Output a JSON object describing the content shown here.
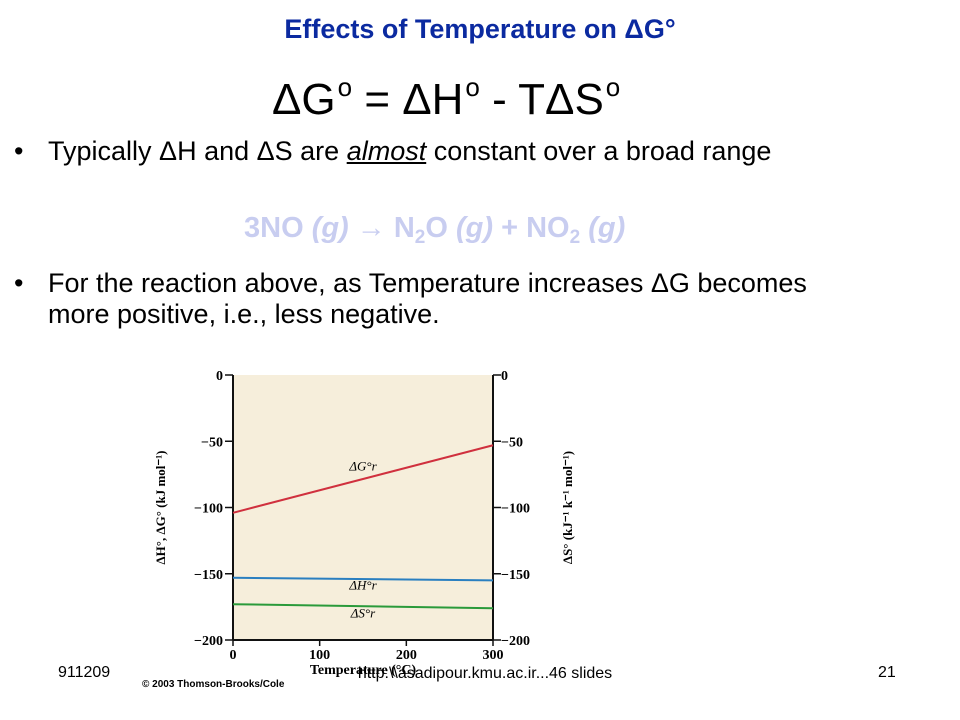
{
  "slide": {
    "title": "Effects of Temperature on ΔG°",
    "equation": {
      "dg": "ΔG",
      "eq": " = ΔH",
      "minus": " - TΔS",
      "deg": "o"
    },
    "bullet1": {
      "before": "Typically ΔH and ΔS are ",
      "emph": "almost",
      "after": " constant over a broad range"
    },
    "reaction": {
      "p1": "3NO ",
      "g1": "(g)",
      "p2": " → N",
      "s1": "2",
      "p3": "O ",
      "g2": "(g)",
      "p4": " + NO",
      "s2": "2",
      "p5": " ",
      "g3": "(g)"
    },
    "bullet2": "For the reaction above, as Temperature increases ΔG becomes more positive, i.e., less negative.",
    "bullet_glyph": "•"
  },
  "footer": {
    "left": "911209",
    "center": "http:\\\\asadipour.kmu.ac.ir...46 slides",
    "right": "21"
  },
  "chart_data": {
    "type": "line",
    "xlabel": "Temperature (°C)",
    "ylabel_left": "ΔH°, ΔG° (kJ mol⁻¹)",
    "ylabel_right": "ΔS° (kJ⁻¹ k⁻¹ mol⁻¹)",
    "xlim": [
      0,
      300
    ],
    "ylim": [
      -200,
      0
    ],
    "xticks": [
      0,
      100,
      200,
      300
    ],
    "yticks": [
      0,
      -50,
      -100,
      -150,
      -200
    ],
    "copyright": "© 2003 Thomson-Brooks/Cole",
    "series": [
      {
        "name": "ΔG°r",
        "color": "#d0303e",
        "x": [
          0,
          300
        ],
        "y": [
          -104,
          -53
        ]
      },
      {
        "name": "ΔH°r",
        "color": "#2a7fc0",
        "x": [
          0,
          300
        ],
        "y": [
          -153,
          -155
        ]
      },
      {
        "name": "ΔS°r",
        "color": "#2a9a3a",
        "x": [
          0,
          300
        ],
        "y": [
          -173,
          -176
        ]
      }
    ],
    "colors": {
      "plot_bg": "#f6eedb",
      "axis": "#111111"
    }
  }
}
